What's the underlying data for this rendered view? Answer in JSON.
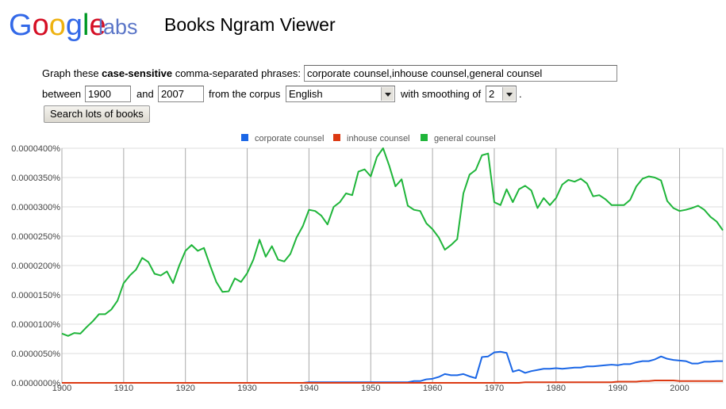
{
  "header": {
    "brand": "Google",
    "suffix": "labs",
    "title": "Books Ngram Viewer"
  },
  "form": {
    "prompt_before": "Graph these",
    "prompt_bold": "case-sensitive",
    "prompt_after": "comma-separated phrases:",
    "phrases": "corporate counsel,inhouse counsel,general counsel",
    "between": "between",
    "start_year": "1900",
    "and": "and",
    "end_year": "2007",
    "corpus_label": "from the corpus",
    "corpus": "English",
    "smoothing_label": "with smoothing of",
    "smoothing": "2",
    "period": ".",
    "button": "Search lots of books"
  },
  "chart_data": {
    "type": "line",
    "grid": true,
    "legend": "top",
    "xlim": [
      1900,
      2007
    ],
    "xticks": [
      1900,
      1910,
      1920,
      1930,
      1940,
      1950,
      1960,
      1970,
      1980,
      1990,
      2000
    ],
    "ylim": [
      0,
      4e-05
    ],
    "yticks": [
      {
        "value": 0,
        "label": "0.0000000%"
      },
      {
        "value": 5e-06,
        "label": "0.0000050%"
      },
      {
        "value": 1e-05,
        "label": "0.0000100%"
      },
      {
        "value": 1.5e-05,
        "label": "0.0000150%"
      },
      {
        "value": 2e-05,
        "label": "0.0000200%"
      },
      {
        "value": 2.5e-05,
        "label": "0.0000250%"
      },
      {
        "value": 3e-05,
        "label": "0.0000300%"
      },
      {
        "value": 3.5e-05,
        "label": "0.0000350%"
      },
      {
        "value": 4e-05,
        "label": "0.0000400%"
      }
    ],
    "x": [
      1900,
      1901,
      1902,
      1903,
      1904,
      1905,
      1906,
      1907,
      1908,
      1909,
      1910,
      1911,
      1912,
      1913,
      1914,
      1915,
      1916,
      1917,
      1918,
      1919,
      1920,
      1921,
      1922,
      1923,
      1924,
      1925,
      1926,
      1927,
      1928,
      1929,
      1930,
      1931,
      1932,
      1933,
      1934,
      1935,
      1936,
      1937,
      1938,
      1939,
      1940,
      1941,
      1942,
      1943,
      1944,
      1945,
      1946,
      1947,
      1948,
      1949,
      1950,
      1951,
      1952,
      1953,
      1954,
      1955,
      1956,
      1957,
      1958,
      1959,
      1960,
      1961,
      1962,
      1963,
      1964,
      1965,
      1966,
      1967,
      1968,
      1969,
      1970,
      1971,
      1972,
      1973,
      1974,
      1975,
      1976,
      1977,
      1978,
      1979,
      1980,
      1981,
      1982,
      1983,
      1984,
      1985,
      1986,
      1987,
      1988,
      1989,
      1990,
      1991,
      1992,
      1993,
      1994,
      1995,
      1996,
      1997,
      1998,
      1999,
      2000,
      2001,
      2002,
      2003,
      2004,
      2005,
      2006,
      2007
    ],
    "series": [
      {
        "name": "corporate counsel",
        "color": "#1a66e6",
        "values": [
          0,
          0,
          0,
          0,
          0,
          0,
          0,
          0,
          0,
          0,
          0,
          0,
          0,
          0,
          0,
          0,
          0,
          0,
          0,
          0,
          0,
          0,
          0,
          0,
          0,
          0,
          0,
          0,
          0,
          0,
          0,
          0,
          0,
          0,
          0,
          0,
          0,
          0,
          0,
          0,
          1e-07,
          1e-07,
          1e-07,
          1e-07,
          1e-07,
          1e-07,
          1e-07,
          1e-07,
          1e-07,
          1e-07,
          1e-07,
          1e-07,
          1e-07,
          1e-07,
          1e-07,
          1e-07,
          1e-07,
          3e-07,
          3e-07,
          6e-07,
          7e-07,
          1e-06,
          1.5e-06,
          1.3e-06,
          1.3e-06,
          1.5e-06,
          1.1e-06,
          8e-07,
          4.4e-06,
          4.5e-06,
          5.2e-06,
          5.3e-06,
          5.1e-06,
          1.9e-06,
          2.2e-06,
          1.7e-06,
          2e-06,
          2.2e-06,
          2.4e-06,
          2.4e-06,
          2.5e-06,
          2.4e-06,
          2.5e-06,
          2.6e-06,
          2.6e-06,
          2.8e-06,
          2.8e-06,
          2.9e-06,
          3e-06,
          3.1e-06,
          3e-06,
          3.2e-06,
          3.2e-06,
          3.5e-06,
          3.7e-06,
          3.7e-06,
          4e-06,
          4.5e-06,
          4.1e-06,
          3.9e-06,
          3.8e-06,
          3.7e-06,
          3.3e-06,
          3.3e-06,
          3.6e-06,
          3.6e-06,
          3.7e-06,
          3.7e-06
        ]
      },
      {
        "name": "inhouse counsel",
        "color": "#dc3912",
        "values": [
          0,
          0,
          0,
          0,
          0,
          0,
          0,
          0,
          0,
          0,
          0,
          0,
          0,
          0,
          0,
          0,
          0,
          0,
          0,
          0,
          0,
          0,
          0,
          0,
          0,
          0,
          0,
          0,
          0,
          0,
          0,
          0,
          0,
          0,
          0,
          0,
          0,
          0,
          0,
          0,
          0,
          0,
          0,
          0,
          0,
          0,
          0,
          0,
          0,
          0,
          0,
          0,
          0,
          0,
          0,
          0,
          0,
          0,
          0,
          0,
          0,
          0,
          0,
          0,
          0,
          0,
          0,
          0,
          0,
          0,
          0,
          0,
          0,
          0,
          0,
          1e-07,
          1e-07,
          1e-07,
          1e-07,
          1e-07,
          1e-07,
          1e-07,
          1e-07,
          1e-07,
          1e-07,
          1e-07,
          1e-07,
          1e-07,
          1e-07,
          1e-07,
          2e-07,
          2e-07,
          2e-07,
          2e-07,
          3e-07,
          3e-07,
          4e-07,
          4e-07,
          4e-07,
          4e-07,
          3e-07,
          3e-07,
          3e-07,
          3e-07,
          3e-07,
          3e-07,
          3e-07,
          3e-07
        ]
      },
      {
        "name": "general counsel",
        "color": "#1fb53a",
        "values": [
          8.4e-06,
          8e-06,
          8.5e-06,
          8.4e-06,
          9.5e-06,
          1.05e-05,
          1.17e-05,
          1.17e-05,
          1.25e-05,
          1.4e-05,
          1.7e-05,
          1.83e-05,
          1.93e-05,
          2.13e-05,
          2.06e-05,
          1.86e-05,
          1.83e-05,
          1.9e-05,
          1.7e-05,
          2e-05,
          2.25e-05,
          2.35e-05,
          2.25e-05,
          2.3e-05,
          2e-05,
          1.72e-05,
          1.55e-05,
          1.56e-05,
          1.78e-05,
          1.72e-05,
          1.87e-05,
          2.1e-05,
          2.44e-05,
          2.15e-05,
          2.33e-05,
          2.1e-05,
          2.07e-05,
          2.2e-05,
          2.48e-05,
          2.67e-05,
          2.95e-05,
          2.93e-05,
          2.85e-05,
          2.7e-05,
          3e-05,
          3.08e-05,
          3.23e-05,
          3.2e-05,
          3.6e-05,
          3.64e-05,
          3.52e-05,
          3.85e-05,
          4e-05,
          3.7e-05,
          3.35e-05,
          3.47e-05,
          3.02e-05,
          2.95e-05,
          2.93e-05,
          2.72e-05,
          2.62e-05,
          2.48e-05,
          2.27e-05,
          2.35e-05,
          2.45e-05,
          3.23e-05,
          3.55e-05,
          3.63e-05,
          3.88e-05,
          3.91e-05,
          3.08e-05,
          3.03e-05,
          3.3e-05,
          3.08e-05,
          3.3e-05,
          3.36e-05,
          3.28e-05,
          2.98e-05,
          3.15e-05,
          3.03e-05,
          3.15e-05,
          3.38e-05,
          3.46e-05,
          3.43e-05,
          3.48e-05,
          3.4e-05,
          3.18e-05,
          3.2e-05,
          3.13e-05,
          3.03e-05,
          3.03e-05,
          3.03e-05,
          3.12e-05,
          3.35e-05,
          3.48e-05,
          3.52e-05,
          3.5e-05,
          3.45e-05,
          3.1e-05,
          2.98e-05,
          2.93e-05,
          2.95e-05,
          2.98e-05,
          3.02e-05,
          2.95e-05,
          2.83e-05,
          2.75e-05,
          2.6e-05
        ]
      }
    ]
  }
}
